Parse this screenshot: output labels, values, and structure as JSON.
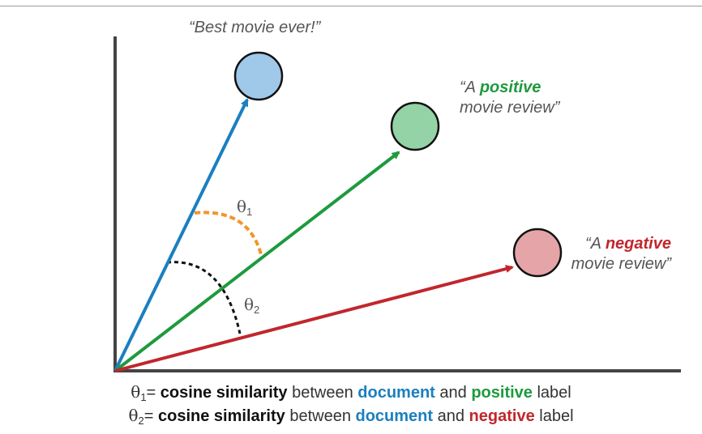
{
  "labels": {
    "best_movie": "“Best movie ever!”",
    "positive_line1_pre": "“A ",
    "positive_word": "positive",
    "positive_line2": "movie review”",
    "negative_line1_pre": "“A ",
    "negative_word": "negative",
    "negative_line2": "movie review”"
  },
  "angles": {
    "theta": "θ",
    "theta1_sub": "1",
    "theta2_sub": "2"
  },
  "caption": {
    "line1": {
      "theta": "θ",
      "sub": "1",
      "eq": "= ",
      "metric": "cosine similarity",
      "between": " between ",
      "document": "document",
      "and": " and ",
      "label_kind": "positive",
      "label": " label"
    },
    "line2": {
      "theta": "θ",
      "sub": "2",
      "eq": "= ",
      "metric": "cosine similarity",
      "between": " between ",
      "document": "document",
      "and": " and ",
      "label_kind": "negative",
      "label": " label"
    }
  },
  "colors": {
    "document": "#1a7fc0",
    "positive": "#1e9a3e",
    "negative": "#c0272d",
    "document_fill": "#9fc8e9",
    "positive_fill": "#93d3a6",
    "negative_fill": "#e5a5a8",
    "theta1_arc": "#f0962a",
    "theta2_arc": "#111111"
  }
}
